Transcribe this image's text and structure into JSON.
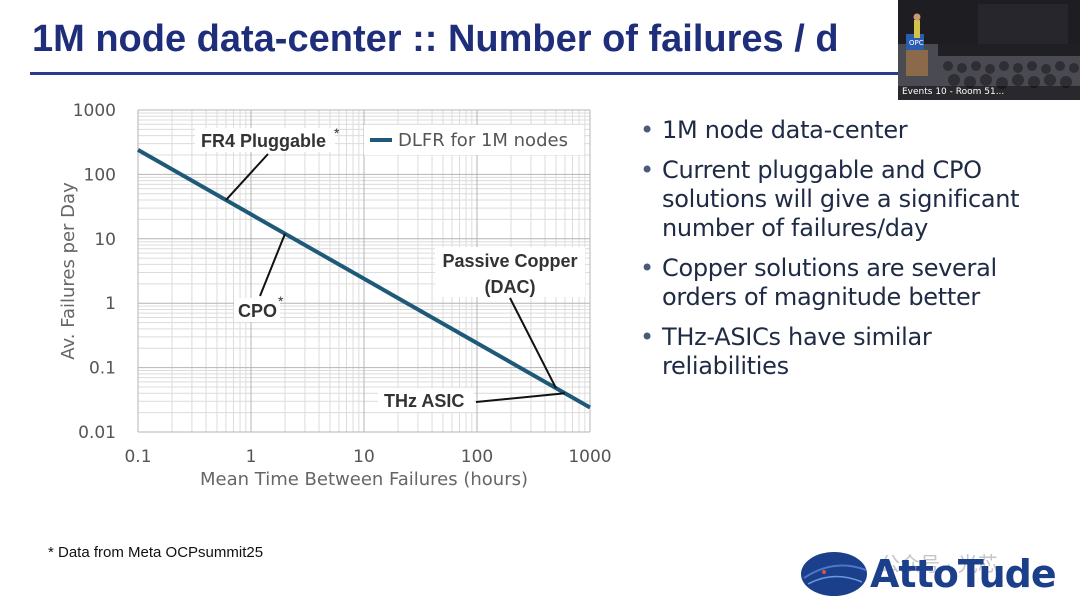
{
  "slide": {
    "title": "1M node data-center :: Number of failures / d",
    "footnote": "* Data from Meta OCPsummit25",
    "bullets": [
      "1M node data-center",
      "Current pluggable and CPO solutions will give a significant number of failures/day",
      "Copper solutions are several orders of magnitude better",
      "THz-ASICs have similar reliabilities"
    ]
  },
  "video_overlay": {
    "label": "Events 10 - Room 51..."
  },
  "logo": {
    "text": "AttoTude",
    "color": "#1b3f8a"
  },
  "watermark": {
    "text": "公众号 · 光芯"
  },
  "chart_data": {
    "type": "line",
    "xscale": "log",
    "yscale": "log",
    "xlabel": "Mean Time Between Failures (hours)",
    "ylabel": "Av. Failures per Day",
    "xlim": [
      0.1,
      1000
    ],
    "ylim": [
      0.01,
      1000
    ],
    "xticks": [
      "0.1",
      "1",
      "10",
      "100",
      "1000"
    ],
    "yticks": [
      "1000",
      "100",
      "10",
      "1",
      "0.1",
      "0.01"
    ],
    "grid": true,
    "legend_position": "top-right",
    "series": [
      {
        "name": "DLFR for 1M nodes",
        "color": "#1e5a78",
        "x": [
          0.1,
          1000
        ],
        "y": [
          240,
          0.024
        ]
      }
    ],
    "annotations": [
      {
        "label": "FR4 Pluggable",
        "star": "*",
        "x": 0.6,
        "y": 40
      },
      {
        "label": "CPO",
        "star": "*",
        "x": 2,
        "y": 12
      },
      {
        "label": "Passive Copper",
        "label2": "(DAC)",
        "x": 500,
        "y": 0.048
      },
      {
        "label": "THz ASIC",
        "x": 600,
        "y": 0.04
      }
    ]
  }
}
